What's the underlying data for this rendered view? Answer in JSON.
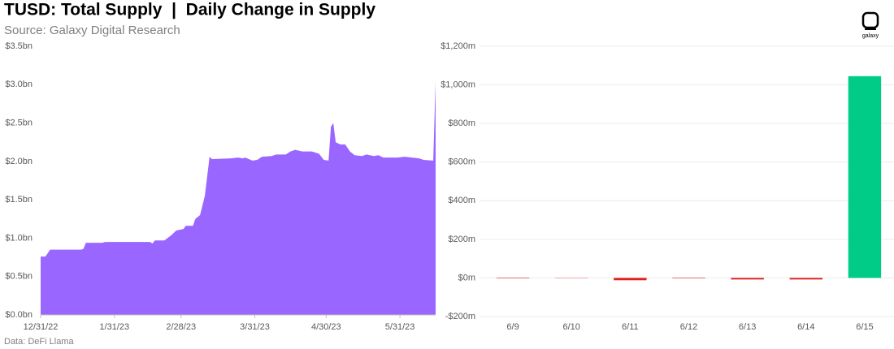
{
  "title": "TUSD: Total Supply  |  Daily Change in Supply",
  "source": "Source: Galaxy Digital Research",
  "footer": "Data: DeFi Llama",
  "logo_text": "galaxy",
  "chart_data": [
    {
      "type": "area",
      "x": [
        "12/31/22",
        "1/2/23",
        "1/4/23",
        "1/17/23",
        "1/18/23",
        "1/19/23",
        "1/26/23",
        "1/27/23",
        "2/15/23",
        "2/16/23",
        "2/17/23",
        "2/21/23",
        "2/24/23",
        "2/26/23",
        "3/1/23",
        "3/2/23",
        "3/5/23",
        "3/6/23",
        "3/8/23",
        "3/10/23",
        "3/12/23",
        "3/13/23",
        "3/21/23",
        "3/24/23",
        "3/26/23",
        "3/27/23",
        "3/30/23",
        "4/1/23",
        "4/3/23",
        "4/7/23",
        "4/9/23",
        "4/13/23",
        "4/15/23",
        "4/17/23",
        "4/20/23",
        "4/24/23",
        "4/27/23",
        "4/29/23",
        "5/1/23",
        "5/2/23",
        "5/3/23",
        "5/4/23",
        "5/6/23",
        "5/8/23",
        "5/10/23",
        "5/12/23",
        "5/15/23",
        "5/17/23",
        "5/20/23",
        "5/22/23",
        "5/24/23",
        "5/30/23",
        "6/2/23",
        "6/8/23",
        "6/10/23",
        "6/14/23",
        "6/15/23"
      ],
      "series": [
        {
          "name": "Total Supply",
          "color": "#9966ff",
          "values": [
            0.76,
            0.76,
            0.85,
            0.85,
            0.86,
            0.94,
            0.94,
            0.95,
            0.95,
            0.93,
            0.97,
            0.97,
            1.04,
            1.1,
            1.12,
            1.16,
            1.16,
            1.25,
            1.3,
            1.55,
            2.06,
            2.03,
            2.04,
            2.05,
            2.04,
            2.05,
            2.01,
            2.02,
            2.06,
            2.07,
            2.09,
            2.09,
            2.13,
            2.15,
            2.13,
            2.13,
            2.1,
            2.02,
            2.01,
            2.45,
            2.5,
            2.25,
            2.22,
            2.22,
            2.13,
            2.08,
            2.07,
            2.09,
            2.07,
            2.08,
            2.05,
            2.05,
            2.06,
            2.04,
            2.02,
            2.01,
            3.04
          ]
        }
      ],
      "xlim": [
        "12/31/22",
        "6/15/23"
      ],
      "xticks": [
        "12/31/22",
        "1/31/23",
        "2/28/23",
        "3/31/23",
        "4/30/23",
        "5/31/23"
      ],
      "ylim": [
        0,
        3.5
      ],
      "yticks": [
        {
          "value": 0,
          "label": "$0.0bn"
        },
        {
          "value": 0.5,
          "label": "$0.5bn"
        },
        {
          "value": 1,
          "label": "$1.0bn"
        },
        {
          "value": 1.5,
          "label": "$1.5bn"
        },
        {
          "value": 2,
          "label": "$2.0bn"
        },
        {
          "value": 2.5,
          "label": "$2.5bn"
        },
        {
          "value": 3,
          "label": "$3.0bn"
        },
        {
          "value": 3.5,
          "label": "$3.5bn"
        }
      ],
      "grid": false
    },
    {
      "type": "bar",
      "categories": [
        "6/9",
        "6/10",
        "6/11",
        "6/12",
        "6/13",
        "6/14",
        "6/15"
      ],
      "values": [
        0,
        -2,
        -12,
        0,
        -8,
        -8,
        1045
      ],
      "colors": [
        "#e0201b",
        "#f08080",
        "#e0201b",
        "#e0201b",
        "#e0201b",
        "#e0201b",
        "#00cc88"
      ],
      "ylim": [
        -200,
        1200
      ],
      "yticks": [
        {
          "value": -200,
          "label": "-$200m"
        },
        {
          "value": 0,
          "label": "$0m"
        },
        {
          "value": 200,
          "label": "$200m"
        },
        {
          "value": 400,
          "label": "$400m"
        },
        {
          "value": 600,
          "label": "$600m"
        },
        {
          "value": 800,
          "label": "$800m"
        },
        {
          "value": 1000,
          "label": "$1,000m"
        },
        {
          "value": 1200,
          "label": "$1,200m"
        }
      ],
      "grid": true
    }
  ]
}
